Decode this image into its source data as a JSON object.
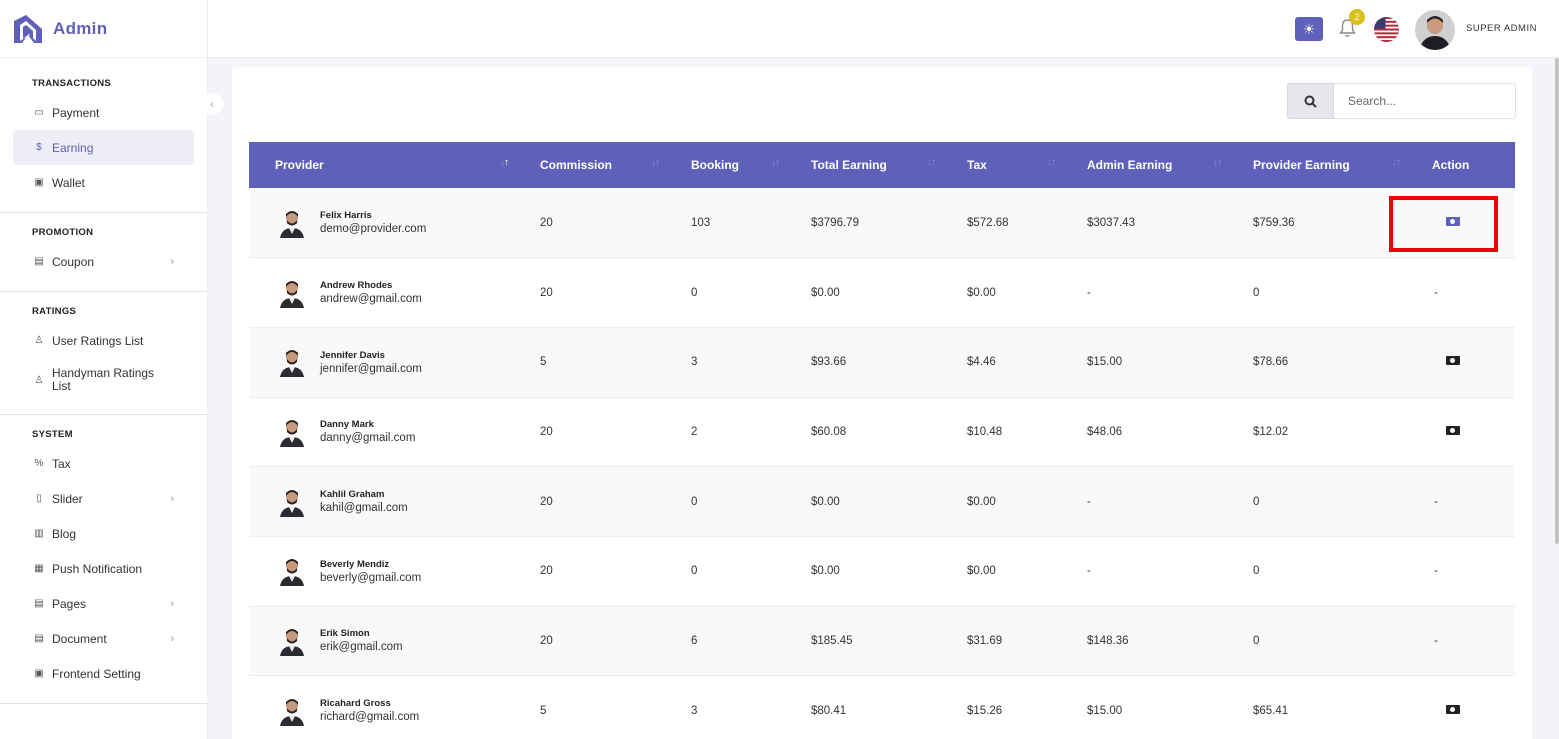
{
  "brand": {
    "name": "Admin"
  },
  "topbar": {
    "notification_count": "2",
    "user_name": "SUPER ADMIN"
  },
  "sidebar": {
    "sections": [
      {
        "title": "TRANSACTIONS",
        "items": [
          {
            "label": "Payment",
            "icon": "card-icon"
          },
          {
            "label": "Earning",
            "icon": "dollar-icon",
            "active": true
          },
          {
            "label": "Wallet",
            "icon": "wallet-icon"
          }
        ]
      },
      {
        "title": "PROMOTION",
        "items": [
          {
            "label": "Coupon",
            "icon": "coupon-icon",
            "chevron": true
          }
        ]
      },
      {
        "title": "RATINGS",
        "items": [
          {
            "label": "User Ratings List",
            "icon": "award-icon"
          },
          {
            "label": "Handyman Ratings List",
            "icon": "award-icon"
          }
        ]
      },
      {
        "title": "SYSTEM",
        "items": [
          {
            "label": "Tax",
            "icon": "percent-icon"
          },
          {
            "label": "Slider",
            "icon": "slider-icon",
            "chevron": true
          },
          {
            "label": "Blog",
            "icon": "blog-icon"
          },
          {
            "label": "Push Notification",
            "icon": "push-icon"
          },
          {
            "label": "Pages",
            "icon": "pages-icon",
            "chevron": true
          },
          {
            "label": "Document",
            "icon": "document-icon",
            "chevron": true
          },
          {
            "label": "Frontend Setting",
            "icon": "frontend-icon"
          }
        ]
      }
    ]
  },
  "search": {
    "placeholder": "Search..."
  },
  "table": {
    "headers": [
      "Provider",
      "Commission",
      "Booking",
      "Total Earning",
      "Tax",
      "Admin Earning",
      "Provider Earning",
      "Action"
    ],
    "rows": [
      {
        "name": "Felix Harris",
        "email": "demo@provider.com",
        "commission": "20",
        "booking": "103",
        "total": "$3796.79",
        "tax": "$572.68",
        "admin": "$3037.43",
        "provider": "$759.36",
        "action": "cash"
      },
      {
        "name": "Andrew Rhodes",
        "email": "andrew@gmail.com",
        "commission": "20",
        "booking": "0",
        "total": "$0.00",
        "tax": "$0.00",
        "admin": "-",
        "provider": "0",
        "action": "-"
      },
      {
        "name": "Jennifer Davis",
        "email": "jennifer@gmail.com",
        "commission": "5",
        "booking": "3",
        "total": "$93.66",
        "tax": "$4.46",
        "admin": "$15.00",
        "provider": "$78.66",
        "action": "cash"
      },
      {
        "name": "Danny Mark",
        "email": "danny@gmail.com",
        "commission": "20",
        "booking": "2",
        "total": "$60.08",
        "tax": "$10.48",
        "admin": "$48.06",
        "provider": "$12.02",
        "action": "cash"
      },
      {
        "name": "Kahlil Graham",
        "email": "kahil@gmail.com",
        "commission": "20",
        "booking": "0",
        "total": "$0.00",
        "tax": "$0.00",
        "admin": "-",
        "provider": "0",
        "action": "-"
      },
      {
        "name": "Beverly Mendiz",
        "email": "beverly@gmail.com",
        "commission": "20",
        "booking": "0",
        "total": "$0.00",
        "tax": "$0.00",
        "admin": "-",
        "provider": "0",
        "action": "-"
      },
      {
        "name": "Erik Simon",
        "email": "erik@gmail.com",
        "commission": "20",
        "booking": "6",
        "total": "$185.45",
        "tax": "$31.69",
        "admin": "$148.36",
        "provider": "0",
        "action": "-"
      },
      {
        "name": "Ricahard Gross",
        "email": "richard@gmail.com",
        "commission": "5",
        "booking": "3",
        "total": "$80.41",
        "tax": "$15.26",
        "admin": "$15.00",
        "provider": "$65.41",
        "action": "cash"
      }
    ]
  },
  "colors": {
    "accent": "#5f60b9",
    "highlight": "#ee0000",
    "badge": "#d9c016"
  }
}
